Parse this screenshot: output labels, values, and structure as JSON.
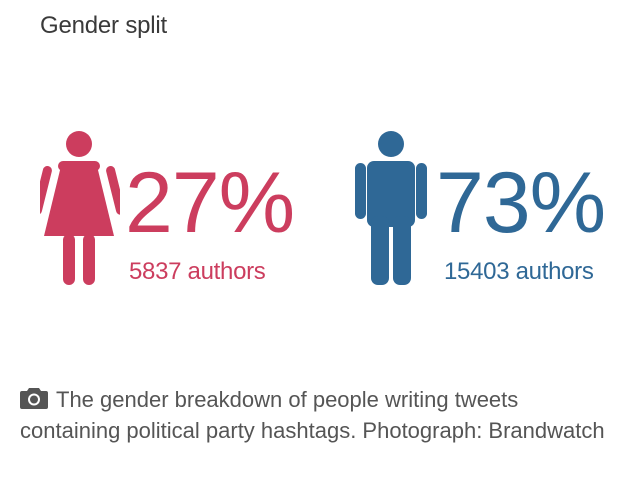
{
  "chart_data": {
    "type": "pictograph",
    "title": "Gender split",
    "series": [
      {
        "name": "female",
        "percent": 27,
        "percent_label": "27%",
        "count_label": "5837 authors",
        "color": "#cc3d5e",
        "icon": "female-figure-icon"
      },
      {
        "name": "male",
        "percent": 73,
        "percent_label": "73%",
        "count_label": "15403 authors",
        "color": "#2f6896",
        "icon": "male-figure-icon"
      }
    ]
  },
  "caption": {
    "icon": "camera-icon",
    "text": "The gender breakdown of people writing tweets containing political party hashtags. Photograph: Brandwatch"
  }
}
